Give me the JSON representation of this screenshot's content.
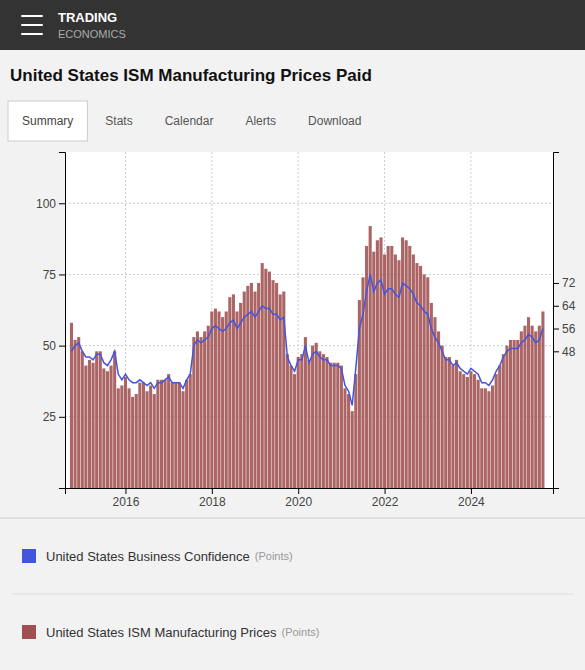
{
  "header": {
    "brand": "TRADING",
    "brand_sub": "ECONOMICS"
  },
  "tabs": [
    "Summary",
    "Stats",
    "Calendar",
    "Alerts",
    "Download"
  ],
  "chart_data": {
    "type": "bar",
    "title": "United States ISM Manufacturing Prices Paid",
    "unit": "(Points)",
    "x": [
      2014.75,
      2014.833333,
      2014.916667,
      2015,
      2015.083333,
      2015.166667,
      2015.25,
      2015.333333,
      2015.416667,
      2015.5,
      2015.583333,
      2015.666667,
      2015.75,
      2015.833333,
      2015.916667,
      2016,
      2016.083333,
      2016.166667,
      2016.25,
      2016.333333,
      2016.416667,
      2016.5,
      2016.583333,
      2016.666667,
      2016.75,
      2016.833333,
      2016.916667,
      2017,
      2017.083333,
      2017.166667,
      2017.25,
      2017.333333,
      2017.416667,
      2017.5,
      2017.583333,
      2017.666667,
      2017.75,
      2017.833333,
      2017.916667,
      2018,
      2018.083333,
      2018.166667,
      2018.25,
      2018.333333,
      2018.416667,
      2018.5,
      2018.583333,
      2018.666667,
      2018.75,
      2018.833333,
      2018.916667,
      2019,
      2019.083333,
      2019.166667,
      2019.25,
      2019.333333,
      2019.416667,
      2019.5,
      2019.583333,
      2019.666667,
      2019.75,
      2019.833333,
      2019.916667,
      2020,
      2020.083333,
      2020.166667,
      2020.25,
      2020.333333,
      2020.416667,
      2020.5,
      2020.583333,
      2020.666667,
      2020.75,
      2020.833333,
      2020.916667,
      2021,
      2021.083333,
      2021.166667,
      2021.25,
      2021.333333,
      2021.416667,
      2021.5,
      2021.583333,
      2021.666667,
      2021.75,
      2021.833333,
      2021.916667,
      2022,
      2022.083333,
      2022.166667,
      2022.25,
      2022.333333,
      2022.416667,
      2022.5,
      2022.583333,
      2022.666667,
      2022.75,
      2022.833333,
      2022.916667,
      2023,
      2023.083333,
      2023.166667,
      2023.25,
      2023.333333,
      2023.416667,
      2023.5,
      2023.583333,
      2023.666667,
      2023.75,
      2023.833333,
      2023.916667,
      2024,
      2024.083333,
      2024.166667,
      2024.25,
      2024.333333,
      2024.416667,
      2024.5,
      2024.583333,
      2024.666667,
      2024.75,
      2024.833333,
      2024.916667,
      2025,
      2025.083333,
      2025.166667,
      2025.25,
      2025.333333,
      2025.416667,
      2025.5,
      2025.583333,
      2025.666667
    ],
    "xlim": [
      2014.6,
      2025.9
    ],
    "xticks": [
      2016,
      2018,
      2020,
      2022,
      2024
    ],
    "ylim": [
      0,
      118
    ],
    "yticks": [
      25,
      50,
      75,
      100
    ],
    "y2lim": [
      0,
      118
    ],
    "y2ticks": [
      48,
      56,
      64,
      72
    ],
    "grid": true,
    "series": [
      {
        "name": "United States Business Confidence",
        "type": "line",
        "color": "#4455dd",
        "values": [
          48,
          50,
          51,
          48,
          46,
          46,
          45,
          47,
          47,
          44,
          43,
          45,
          48,
          40,
          38,
          40,
          38,
          37,
          37,
          38,
          37,
          36,
          37,
          35,
          37,
          37,
          38,
          39,
          37,
          37,
          37,
          35,
          38,
          40,
          50,
          52,
          51,
          52,
          53,
          56,
          57,
          56,
          55,
          56,
          58,
          59,
          56,
          58,
          60,
          61,
          62,
          60,
          62,
          64,
          63,
          63,
          61,
          61,
          59,
          60,
          46,
          43,
          41,
          45,
          45,
          50,
          44,
          47,
          48,
          46,
          45,
          45,
          43,
          43,
          43,
          42,
          36,
          34,
          29,
          42,
          56,
          61,
          69,
          75,
          69,
          72,
          73,
          68,
          70,
          70,
          68,
          67,
          72,
          71,
          70,
          68,
          65,
          64,
          62,
          61,
          56,
          53,
          51,
          48,
          45,
          45,
          43,
          44,
          42,
          41,
          40,
          42,
          41,
          40,
          37,
          37,
          36,
          38,
          41,
          43,
          46,
          48,
          49,
          49,
          49,
          51,
          52,
          54,
          53,
          51,
          52,
          56
        ]
      },
      {
        "name": "United States ISM Manufacturing Prices",
        "type": "bar",
        "color": "#a05050",
        "values": [
          58,
          52,
          53,
          48,
          43,
          45,
          44,
          48,
          48,
          42,
          41,
          43,
          48,
          35,
          36,
          39,
          35,
          32,
          33,
          37,
          37,
          34,
          36,
          33,
          38,
          38,
          38,
          40,
          37,
          37,
          37,
          34,
          38,
          40,
          53,
          55,
          53,
          55,
          57,
          62,
          63,
          62,
          60,
          62,
          67,
          68,
          62,
          65,
          69,
          71,
          72,
          69,
          72,
          79,
          77,
          76,
          73,
          72,
          68,
          69,
          47,
          43,
          40,
          46,
          47,
          53,
          45,
          50,
          51,
          48,
          47,
          46,
          44,
          44,
          44,
          43,
          35,
          33,
          27,
          40,
          66,
          74,
          85,
          92,
          83,
          87,
          88,
          82,
          85,
          85,
          82,
          80,
          88,
          87,
          85,
          82,
          79,
          78,
          75,
          74,
          65,
          60,
          55,
          50,
          46,
          46,
          43,
          45,
          41,
          40,
          39,
          41,
          40,
          38,
          35,
          35,
          34,
          36,
          40,
          43,
          47,
          50,
          52,
          52,
          52,
          55,
          57,
          60,
          57,
          55,
          57,
          62
        ]
      }
    ]
  }
}
